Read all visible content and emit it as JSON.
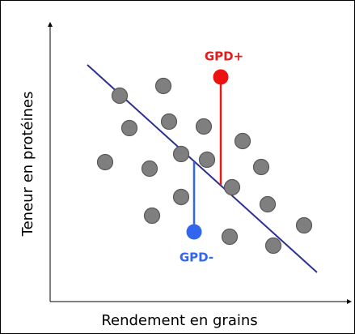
{
  "x_axis_label": "Rendement en grains",
  "y_axis_label": "Teneur en protéines",
  "annotations": {
    "positive": "GPD+",
    "negative": "GPD-"
  }
}
